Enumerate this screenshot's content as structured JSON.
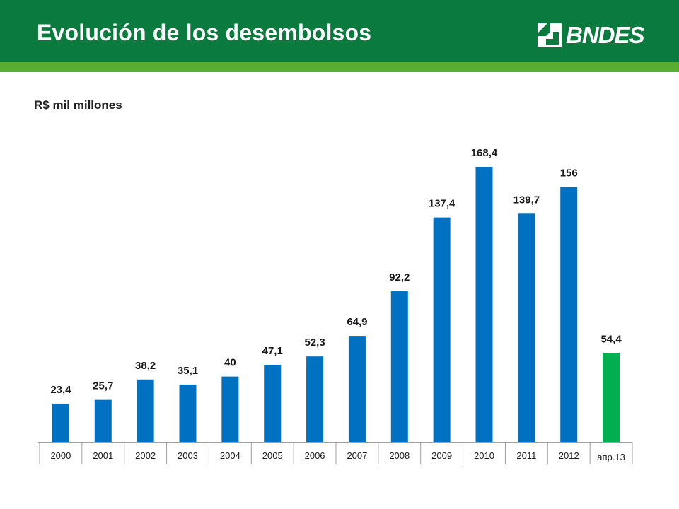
{
  "header": {
    "title": "Evolución de los desembolsos",
    "logo_text": "BNDES"
  },
  "colors": {
    "header_dark": "#0b7a3e",
    "header_light": "#5aac2f",
    "bar_blue": "#0070c0",
    "bar_green": "#00b050"
  },
  "chart_data": {
    "type": "bar",
    "title": "Evolución de los desembolsos",
    "ylabel": "R$ mil millones",
    "xlabel": "",
    "grid": false,
    "categories": [
      "2000",
      "2001",
      "2002",
      "2003",
      "2004",
      "2005",
      "2006",
      "2007",
      "2008",
      "2009",
      "2010",
      "2011",
      "2012",
      "апр.13"
    ],
    "values": [
      23.4,
      25.7,
      38.2,
      35.1,
      40,
      47.1,
      52.3,
      64.9,
      92.2,
      137.4,
      168.4,
      139.7,
      156,
      54.4
    ],
    "value_labels": [
      "23,4",
      "25,7",
      "38,2",
      "35,1",
      "40",
      "47,1",
      "52,3",
      "64,9",
      "92,2",
      "137,4",
      "168,4",
      "139,7",
      "156",
      "54,4"
    ],
    "highlight_index": 13
  }
}
